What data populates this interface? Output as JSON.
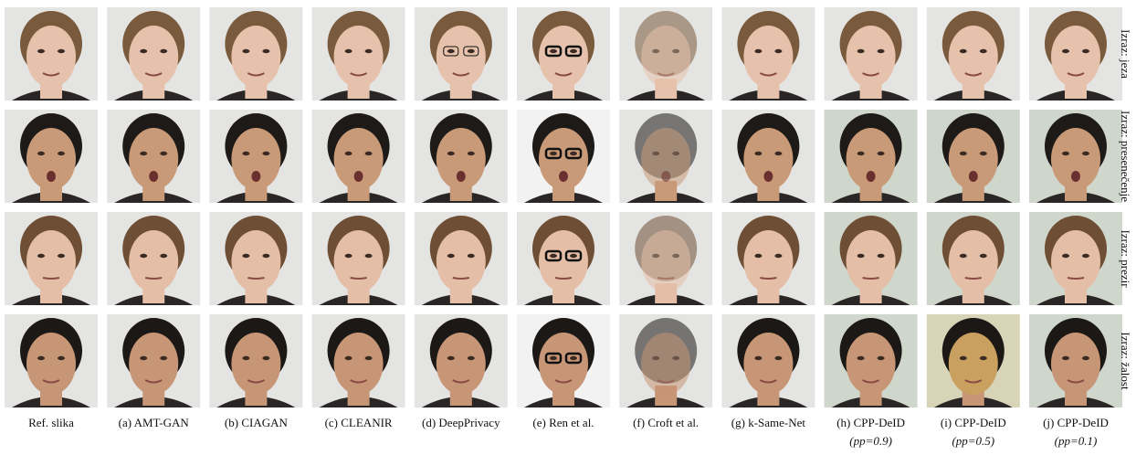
{
  "figure": {
    "columns": [
      {
        "label": "Ref. slika"
      },
      {
        "label": "(a) AMT-GAN"
      },
      {
        "label": "(b) CIAGAN"
      },
      {
        "label": "(c) CLEANIR"
      },
      {
        "label": "(d) DeepPrivacy"
      },
      {
        "label": "(e) Ren et al."
      },
      {
        "label": "(f) Croft et al."
      },
      {
        "label": "(g) k-Same-Net"
      },
      {
        "label": "(h) CPP-DeID",
        "sublabel": "(pp=0.9)"
      },
      {
        "label": "(i) CPP-DeID",
        "sublabel": "(pp=0.5)"
      },
      {
        "label": "(j) CPP-DeID",
        "sublabel": "(pp=0.1)"
      }
    ],
    "rows": [
      {
        "label": "Izraz: jeza"
      },
      {
        "label": "Izraz: presenečenje"
      },
      {
        "label": "Izraz: prezir"
      },
      {
        "label": "Izraz: žalost"
      }
    ]
  }
}
